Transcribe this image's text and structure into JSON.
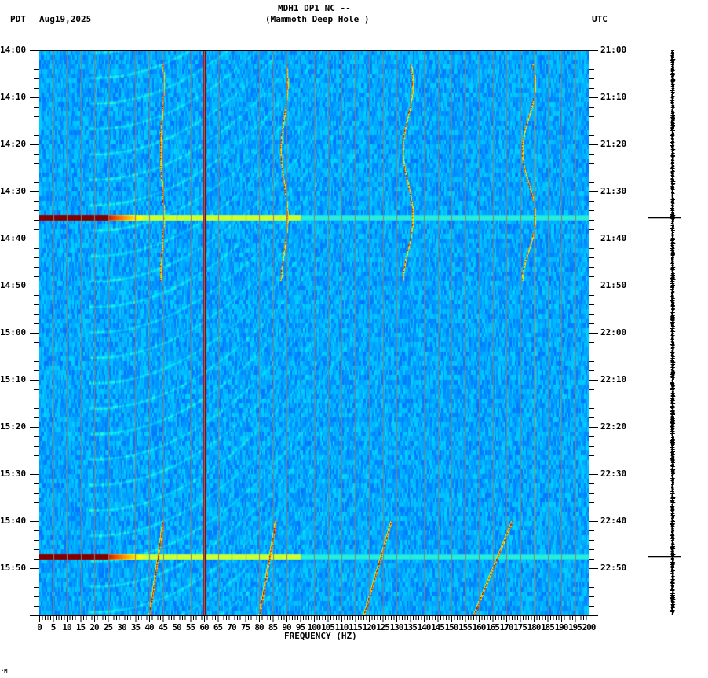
{
  "header": {
    "title_line1": "MDH1 DP1 NC --",
    "title_line2": "(Mammoth Deep Hole )",
    "left_timezone": "PDT",
    "date": "Aug19,2025",
    "right_timezone": "UTC"
  },
  "footer": {
    "corner_mark": "·M"
  },
  "chart_data": {
    "type": "heatmap",
    "subtype": "spectrogram",
    "title": "MDH1 DP1 NC -- (Mammoth Deep Hole )",
    "xlabel": "FREQUENCY (HZ)",
    "ylabel_left": "PDT",
    "ylabel_right": "UTC",
    "xlim": [
      0,
      200
    ],
    "x_ticks": [
      "0",
      "5",
      "10",
      "15",
      "20",
      "25",
      "30",
      "35",
      "40",
      "45",
      "50",
      "55",
      "60",
      "65",
      "70",
      "75",
      "80",
      "85",
      "90",
      "95",
      "100",
      "105",
      "110",
      "115",
      "120",
      "125",
      "130",
      "135",
      "140",
      "145",
      "150",
      "155",
      "160",
      "165",
      "170",
      "175",
      "180",
      "185",
      "190",
      "195",
      "200"
    ],
    "y_ticks_left": [
      "14:00",
      "14:10",
      "14:20",
      "14:30",
      "14:40",
      "14:50",
      "15:00",
      "15:10",
      "15:20",
      "15:30",
      "15:40",
      "15:50"
    ],
    "y_ticks_right": [
      "21:00",
      "21:10",
      "21:20",
      "21:30",
      "21:40",
      "21:50",
      "22:00",
      "22:10",
      "22:20",
      "22:30",
      "22:40",
      "22:50"
    ],
    "time_span_minutes": 120,
    "colormap": [
      "#0000c8",
      "#0050ff",
      "#00a0ff",
      "#00e0ff",
      "#80ff80",
      "#ffff00",
      "#ff8000",
      "#c00000",
      "#800000"
    ],
    "background_color": "#1a78f0",
    "features": [
      {
        "kind": "steady_line",
        "freq_hz": 60,
        "intensity": "very high",
        "color": "#8b0000"
      },
      {
        "kind": "steady_line",
        "freq_hz": 5,
        "intensity": "low",
        "color": "#7ee080"
      },
      {
        "kind": "steady_line",
        "freq_hz": 180,
        "intensity": "moderate",
        "color": "#c8e040"
      },
      {
        "kind": "broadband_pulse",
        "time_min": 35.5,
        "freq_range_hz": [
          0,
          200
        ],
        "strongest_below_hz": 25
      },
      {
        "kind": "broadband_pulse",
        "time_min": 107.5,
        "freq_range_hz": [
          0,
          200
        ],
        "strongest_below_hz": 25
      },
      {
        "kind": "wandering_tone",
        "center_freq_hz": 44.5,
        "time_range_min": [
          3,
          49
        ]
      },
      {
        "kind": "wandering_tone",
        "center_freq_hz": 89,
        "time_range_min": [
          3,
          49
        ]
      },
      {
        "kind": "wandering_tone",
        "center_freq_hz": 134,
        "time_range_min": [
          3,
          49
        ]
      },
      {
        "kind": "wandering_tone",
        "center_freq_hz": 178,
        "time_range_min": [
          3,
          49
        ]
      },
      {
        "kind": "chirp",
        "freq_start_hz": 45,
        "freq_end_hz": 40,
        "time_range_min": [
          100,
          120
        ]
      },
      {
        "kind": "chirp",
        "freq_start_hz": 86,
        "freq_end_hz": 80,
        "time_range_min": [
          100,
          120
        ]
      },
      {
        "kind": "chirp",
        "freq_start_hz": 128,
        "freq_end_hz": 118,
        "time_range_min": [
          100,
          120
        ]
      },
      {
        "kind": "chirp",
        "freq_start_hz": 172,
        "freq_end_hz": 158,
        "time_range_min": [
          100,
          120
        ]
      },
      {
        "kind": "curved_arcs",
        "description": "repeating faint cyan arcs sweeping up-right from ~20 Hz to ~120 Hz, period ~5 min"
      }
    ],
    "grid": {
      "vertical_every_hz": 5,
      "color": "#808080"
    },
    "side_trace": {
      "marker_times_min": [
        35.5,
        107.5
      ]
    }
  }
}
